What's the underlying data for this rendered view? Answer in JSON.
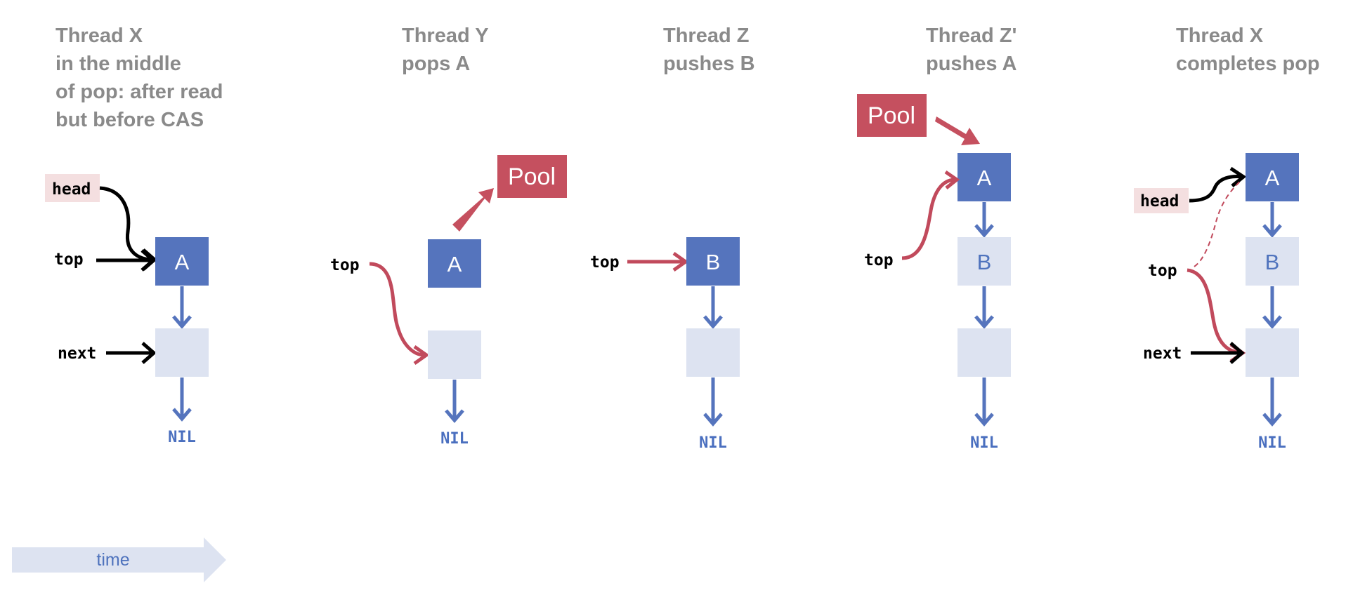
{
  "colors": {
    "node_dark": "#5574bd",
    "node_light": "#dde3f1",
    "pool": "#c5505f",
    "head_bg": "#f4dfe0",
    "blue_arrow": "#5574bd",
    "red_arrow": "#c14a5c",
    "title_gray": "#8a8a8a",
    "time_arrow": "#dde3f1"
  },
  "icons": {
    "pointer": "arrow-icon",
    "time": "block-arrow-icon"
  },
  "panels": [
    {
      "title": [
        "Thread X",
        "in the middle",
        "of pop: after read",
        "but before CAS"
      ]
    },
    {
      "title": [
        "Thread Y",
        "pops A"
      ]
    },
    {
      "title": [
        "Thread Z",
        "pushes B"
      ]
    },
    {
      "title": [
        "Thread Z'",
        "pushes A"
      ]
    },
    {
      "title": [
        "Thread X",
        "completes pop"
      ]
    }
  ],
  "labels": {
    "head": "head",
    "top": "top",
    "next": "next",
    "nil": "NIL",
    "pool": "Pool",
    "node_a": "A",
    "node_b": "B",
    "time": "time"
  }
}
